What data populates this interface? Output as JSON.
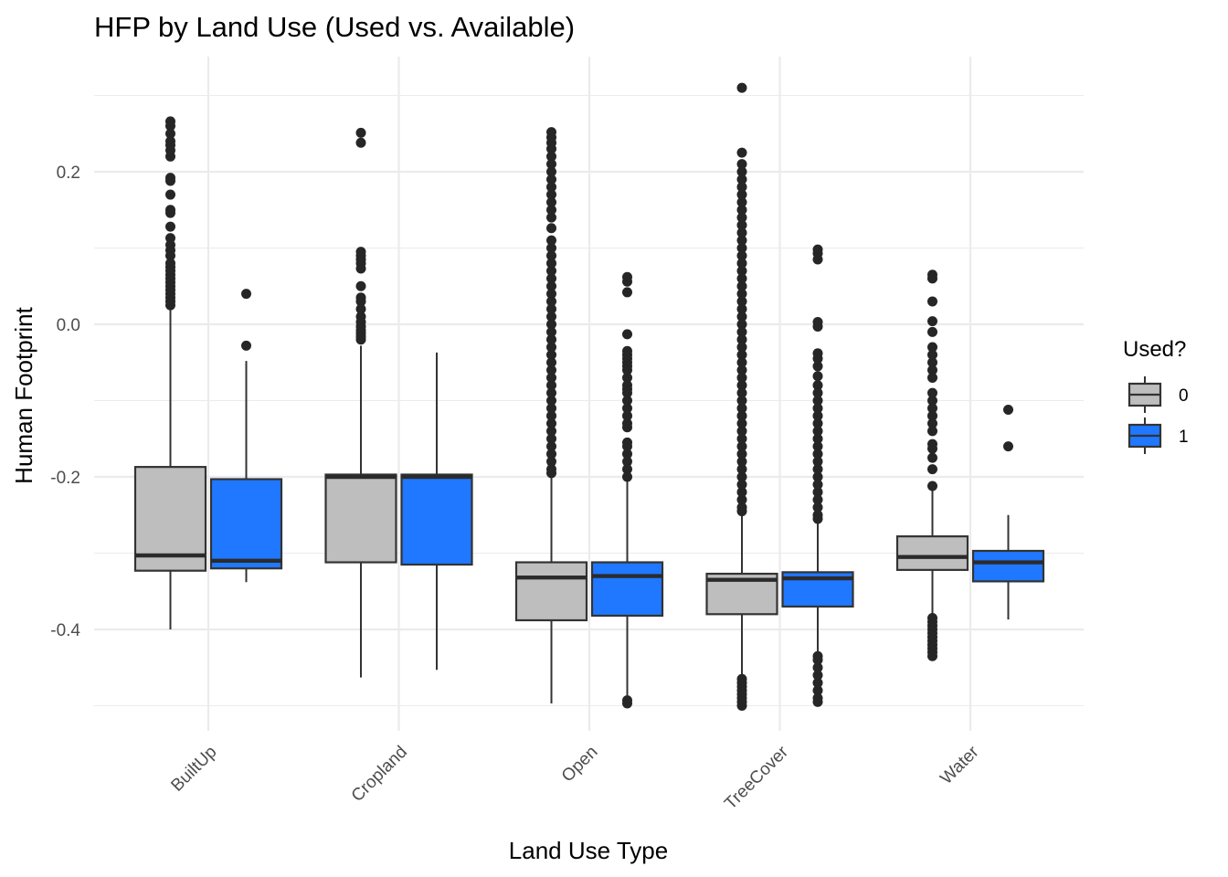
{
  "chart_data": {
    "type": "boxplot",
    "title": "HFP by Land Use (Used vs. Available)",
    "xlabel": "Land Use Type",
    "ylabel": "Human Footprint",
    "ylim": [
      -0.505,
      0.33
    ],
    "yticks": [
      -0.4,
      -0.2,
      0.0,
      0.2
    ],
    "ytick_labels": [
      "-0.4",
      "-0.2",
      "0.0",
      "0.2"
    ],
    "categories": [
      "BuiltUp",
      "Cropland",
      "Open",
      "TreeCover",
      "Water"
    ],
    "grid": true,
    "legend": {
      "title": "Used?",
      "position": "right",
      "items": [
        {
          "label": "0",
          "color": "#bebebe"
        },
        {
          "label": "1",
          "color": "#1f78ff"
        }
      ]
    },
    "series": [
      {
        "name": "0",
        "color": "#bebebe",
        "boxes": [
          {
            "q1": -0.323,
            "median": -0.303,
            "q3": -0.187,
            "whisker_low": -0.4,
            "whisker_high": 0.02,
            "outliers": [
              0.266,
              0.26,
              0.25,
              0.24,
              0.235,
              0.228,
              0.22,
              0.192,
              0.188,
              0.17,
              0.15,
              0.146,
              0.128,
              0.113,
              0.104,
              0.097,
              0.09,
              0.08,
              0.075,
              0.07,
              0.065,
              0.06,
              0.055,
              0.05,
              0.045,
              0.04,
              0.035,
              0.03,
              0.025
            ]
          },
          {
            "q1": -0.312,
            "median": -0.2,
            "q3": -0.197,
            "whisker_low": -0.463,
            "whisker_high": -0.028,
            "outliers": [
              0.251,
              0.238,
              0.095,
              0.09,
              0.085,
              0.08,
              0.073,
              0.05,
              0.035,
              0.03,
              0.02,
              0.01,
              0.003,
              -0.003,
              -0.008,
              -0.012,
              -0.016,
              -0.02
            ]
          },
          {
            "q1": -0.388,
            "median": -0.332,
            "q3": -0.312,
            "whisker_low": -0.497,
            "whisker_high": -0.2,
            "outliers": [
              0.252,
              0.245,
              0.238,
              0.23,
              0.22,
              0.21,
              0.2,
              0.19,
              0.18,
              0.17,
              0.16,
              0.15,
              0.14,
              0.126,
              0.11,
              0.1,
              0.09,
              0.08,
              0.07,
              0.06,
              0.05,
              0.04,
              0.03,
              0.02,
              0.01,
              0.0,
              -0.01,
              -0.02,
              -0.03,
              -0.04,
              -0.05,
              -0.06,
              -0.07,
              -0.08,
              -0.09,
              -0.1,
              -0.11,
              -0.12,
              -0.13,
              -0.14,
              -0.15,
              -0.16,
              -0.17,
              -0.18,
              -0.19,
              -0.195
            ]
          },
          {
            "q1": -0.38,
            "median": -0.335,
            "q3": -0.327,
            "whisker_low": -0.462,
            "whisker_high": -0.25,
            "outliers": [
              0.31,
              0.225,
              0.21,
              0.2,
              0.19,
              0.18,
              0.17,
              0.16,
              0.15,
              0.14,
              0.13,
              0.12,
              0.11,
              0.1,
              0.09,
              0.08,
              0.07,
              0.06,
              0.05,
              0.04,
              0.03,
              0.02,
              0.01,
              0.0,
              -0.01,
              -0.02,
              -0.03,
              -0.04,
              -0.05,
              -0.06,
              -0.07,
              -0.08,
              -0.09,
              -0.1,
              -0.11,
              -0.12,
              -0.13,
              -0.14,
              -0.15,
              -0.16,
              -0.17,
              -0.18,
              -0.19,
              -0.2,
              -0.21,
              -0.22,
              -0.23,
              -0.24,
              -0.245,
              -0.465,
              -0.47,
              -0.475,
              -0.48,
              -0.485,
              -0.49,
              -0.495,
              -0.5
            ]
          },
          {
            "q1": -0.322,
            "median": -0.305,
            "q3": -0.278,
            "whisker_low": -0.385,
            "whisker_high": -0.215,
            "outliers": [
              0.065,
              0.06,
              0.03,
              0.004,
              -0.01,
              -0.03,
              -0.04,
              -0.05,
              -0.06,
              -0.07,
              -0.09,
              -0.1,
              -0.11,
              -0.12,
              -0.13,
              -0.14,
              -0.157,
              -0.163,
              -0.175,
              -0.19,
              -0.212,
              -0.385,
              -0.39,
              -0.395,
              -0.4,
              -0.405,
              -0.41,
              -0.415,
              -0.42,
              -0.425,
              -0.43,
              -0.435
            ]
          }
        ]
      },
      {
        "name": "1",
        "color": "#1f78ff",
        "boxes": [
          {
            "q1": -0.32,
            "median": -0.31,
            "q3": -0.203,
            "whisker_low": -0.338,
            "whisker_high": -0.048,
            "outliers": [
              0.04,
              -0.028
            ]
          },
          {
            "q1": -0.315,
            "median": -0.2,
            "q3": -0.197,
            "whisker_low": -0.453,
            "whisker_high": -0.037,
            "outliers": []
          },
          {
            "q1": -0.382,
            "median": -0.33,
            "q3": -0.312,
            "whisker_low": -0.49,
            "whisker_high": -0.205,
            "outliers": [
              0.062,
              0.056,
              0.042,
              -0.013,
              -0.035,
              -0.04,
              -0.045,
              -0.05,
              -0.055,
              -0.06,
              -0.07,
              -0.08,
              -0.085,
              -0.09,
              -0.1,
              -0.11,
              -0.12,
              -0.13,
              -0.135,
              -0.155,
              -0.16,
              -0.17,
              -0.18,
              -0.19,
              -0.2,
              -0.493,
              -0.497
            ]
          },
          {
            "q1": -0.37,
            "median": -0.333,
            "q3": -0.325,
            "whisker_low": -0.432,
            "whisker_high": -0.26,
            "outliers": [
              0.098,
              0.093,
              0.085,
              0.003,
              -0.003,
              -0.038,
              -0.045,
              -0.055,
              -0.068,
              -0.08,
              -0.09,
              -0.1,
              -0.11,
              -0.12,
              -0.13,
              -0.14,
              -0.15,
              -0.16,
              -0.17,
              -0.18,
              -0.19,
              -0.2,
              -0.21,
              -0.22,
              -0.23,
              -0.24,
              -0.25,
              -0.255,
              -0.435,
              -0.44,
              -0.45,
              -0.46,
              -0.47,
              -0.48,
              -0.49,
              -0.495
            ]
          },
          {
            "q1": -0.337,
            "median": -0.312,
            "q3": -0.297,
            "whisker_low": -0.387,
            "whisker_high": -0.25,
            "outliers": [
              -0.112,
              -0.16
            ]
          }
        ]
      }
    ]
  }
}
